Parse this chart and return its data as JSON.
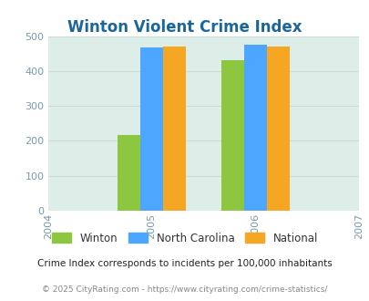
{
  "title": "Winton Violent Crime Index",
  "years": [
    2004,
    2005,
    2006,
    2007
  ],
  "bar_years": [
    2005,
    2006
  ],
  "winton": [
    218,
    430
  ],
  "north_carolina": [
    468,
    476
  ],
  "national": [
    470,
    471
  ],
  "colors": {
    "winton": "#8dc63f",
    "north_carolina": "#4da6ff",
    "national": "#f5a623"
  },
  "ylim": [
    0,
    500
  ],
  "yticks": [
    0,
    100,
    200,
    300,
    400,
    500
  ],
  "bg_color": "#ddeee8",
  "title_color": "#1a6699",
  "tick_color": "#7799aa",
  "legend_labels": [
    "Winton",
    "North Carolina",
    "National"
  ],
  "footnote1": "Crime Index corresponds to incidents per 100,000 inhabitants",
  "footnote2": "© 2025 CityRating.com - https://www.cityrating.com/crime-statistics/",
  "bar_width": 0.22
}
